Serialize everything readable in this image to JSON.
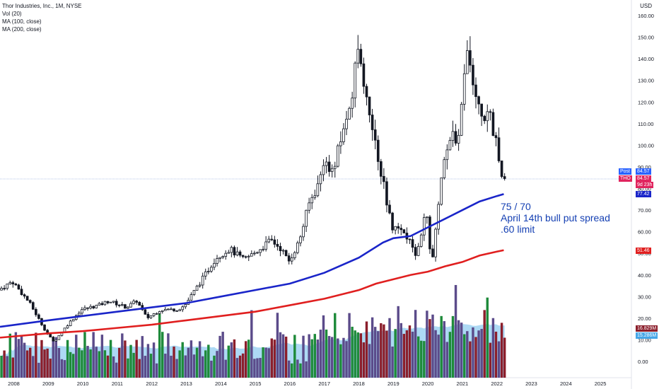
{
  "legend": {
    "title": "Thor Industries, Inc., 1M, NYSE",
    "vol": "Vol (20)",
    "ma100": "MA (100, close)",
    "ma200": "MA (200, close)"
  },
  "currency": "USD",
  "annotation": {
    "line1": "75 / 70",
    "line2": "April 14th bull put spread",
    "line3": ".60 limit",
    "color": "#1540b3"
  },
  "tags": {
    "post_label": "Post",
    "post_value": "84.57",
    "tho_label": "THO",
    "tho_value": "84.57",
    "countdown": "9d 23h",
    "ma100_value": "77.42",
    "ma200_value": "51.46",
    "vol_value": "16.829M",
    "volma_value": "15.286M"
  },
  "colors": {
    "up_volume": "#1e8a3a",
    "down_volume": "#8b1e2b",
    "neutral_volume": "#5b4b8a",
    "volume_ma_area": "#9fd2f2",
    "ma100": "#1a25c9",
    "ma200": "#e01f1f",
    "candle": "#131722",
    "post_tag": "#2962ff",
    "tho_tag": "#e0245e",
    "ma100_tag": "#1a25c9",
    "ma200_tag": "#e01f1f",
    "vol_tag": "#8b1e2b",
    "volma_tag": "#45a6e8"
  },
  "chart_data": {
    "type": "candlestick",
    "xlabels": [
      "2008",
      "2009",
      "2010",
      "2011",
      "2012",
      "2013",
      "2014",
      "2015",
      "2016",
      "2017",
      "2018",
      "2019",
      "2020",
      "2021",
      "2022",
      "2023",
      "2024",
      "2025"
    ],
    "ylabels": [
      "160.00",
      "150.00",
      "140.00",
      "130.00",
      "120.00",
      "110.00",
      "100.00",
      "90.00",
      "80.00",
      "70.00",
      "60.00",
      "50.00",
      "40.00",
      "30.00",
      "20.00",
      "10.00",
      "0.00"
    ],
    "ylim": [
      0,
      160
    ],
    "last_close": 84.57,
    "price_path": [
      [
        "2007.6",
        33
      ],
      [
        "2008.0",
        37
      ],
      [
        "2008.5",
        27
      ],
      [
        "2009.0",
        13
      ],
      [
        "2009.2",
        9
      ],
      [
        "2009.6",
        17
      ],
      [
        "2010.0",
        24
      ],
      [
        "2010.5",
        26
      ],
      [
        "2010.8",
        28
      ],
      [
        "2011.3",
        25
      ],
      [
        "2011.6",
        28
      ],
      [
        "2011.9",
        20
      ],
      [
        "2012.3",
        24
      ],
      [
        "2012.8",
        24
      ],
      [
        "2013.0",
        26
      ],
      [
        "2013.5",
        38
      ],
      [
        "2013.9",
        48
      ],
      [
        "2014.3",
        52
      ],
      [
        "2014.7",
        47
      ],
      [
        "2015.0",
        50
      ],
      [
        "2015.5",
        56
      ],
      [
        "2015.8",
        52
      ],
      [
        "2016.0",
        46
      ],
      [
        "2016.3",
        55
      ],
      [
        "2016.6",
        73
      ],
      [
        "2016.9",
        83
      ],
      [
        "2017.0",
        92
      ],
      [
        "2017.3",
        87
      ],
      [
        "2017.5",
        102
      ],
      [
        "2017.8",
        118
      ],
      [
        "2018.0",
        143
      ],
      [
        "2018.1",
        140
      ],
      [
        "2018.4",
        108
      ],
      [
        "2018.7",
        87
      ],
      [
        "2019.0",
        62
      ],
      [
        "2019.4",
        58
      ],
      [
        "2019.7",
        50
      ],
      [
        "2019.9",
        63
      ],
      [
        "2020.0",
        70
      ],
      [
        "2020.15",
        43
      ],
      [
        "2020.3",
        65
      ],
      [
        "2020.5",
        95
      ],
      [
        "2020.8",
        110
      ],
      [
        "2020.9",
        95
      ],
      [
        "2021.0",
        120
      ],
      [
        "2021.2",
        142
      ],
      [
        "2021.4",
        122
      ],
      [
        "2021.6",
        112
      ],
      [
        "2021.8",
        115
      ],
      [
        "2022.0",
        103
      ],
      [
        "2022.2",
        84.57
      ]
    ],
    "ma100_path": [
      [
        "2007.6",
        16
      ],
      [
        "2009.0",
        19
      ],
      [
        "2010.0",
        21
      ],
      [
        "2011.0",
        23
      ],
      [
        "2012.0",
        25
      ],
      [
        "2013.0",
        27
      ],
      [
        "2014.0",
        30
      ],
      [
        "2015.0",
        33
      ],
      [
        "2016.0",
        36
      ],
      [
        "2017.0",
        41
      ],
      [
        "2018.0",
        48
      ],
      [
        "2018.7",
        55
      ],
      [
        "2019.0",
        57
      ],
      [
        "2019.5",
        58
      ],
      [
        "2020.0",
        62
      ],
      [
        "2020.5",
        66
      ],
      [
        "2021.0",
        70
      ],
      [
        "2021.5",
        74
      ],
      [
        "2022.0",
        76.5
      ],
      [
        "2022.2",
        77.42
      ]
    ],
    "ma200_path": [
      [
        "2007.6",
        11
      ],
      [
        "2009.0",
        13
      ],
      [
        "2010.0",
        14
      ],
      [
        "2011.0",
        15.5
      ],
      [
        "2012.0",
        17
      ],
      [
        "2013.0",
        19
      ],
      [
        "2014.0",
        21
      ],
      [
        "2015.0",
        23
      ],
      [
        "2016.0",
        26
      ],
      [
        "2017.0",
        29
      ],
      [
        "2018.0",
        33
      ],
      [
        "2018.5",
        36
      ],
      [
        "2019.0",
        38
      ],
      [
        "2019.5",
        40
      ],
      [
        "2020.0",
        41.5
      ],
      [
        "2020.5",
        44
      ],
      [
        "2021.0",
        46
      ],
      [
        "2021.5",
        49
      ],
      [
        "2022.0",
        50.8
      ],
      [
        "2022.2",
        51.46
      ]
    ]
  }
}
